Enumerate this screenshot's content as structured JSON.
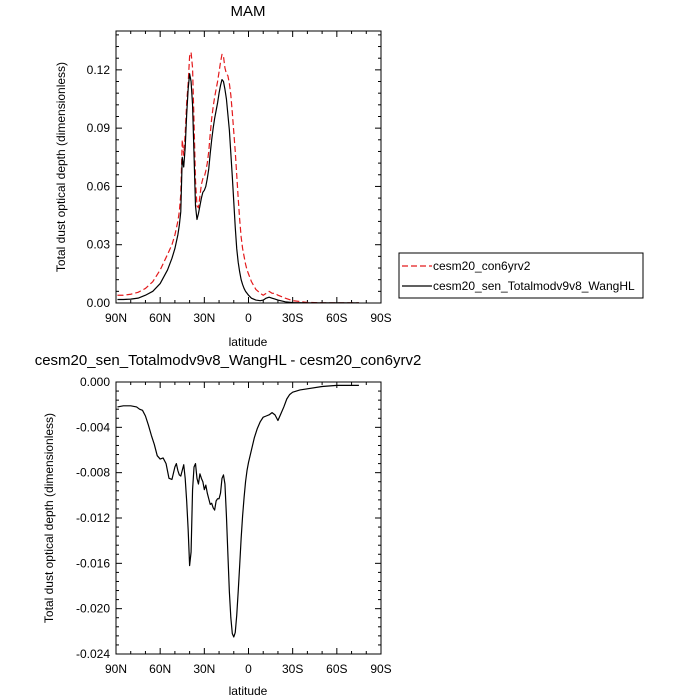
{
  "chart_data": [
    {
      "type": "line",
      "title": "MAM",
      "xlabel": "latitude",
      "ylabel": "Total dust optical depth (dimensionless)",
      "xlim": [
        90,
        -90
      ],
      "ylim": [
        0,
        0.14
      ],
      "x_ticks": [
        "90N",
        "60N",
        "30N",
        "0",
        "30S",
        "60S",
        "90S"
      ],
      "x_tick_values": [
        90,
        60,
        30,
        0,
        -30,
        -60,
        -90
      ],
      "y_ticks": [
        "0.00",
        "0.03",
        "0.06",
        "0.09",
        "0.12"
      ],
      "y_tick_values": [
        0,
        0.03,
        0.06,
        0.09,
        0.12
      ],
      "grid": false,
      "legend_position": "right",
      "series": [
        {
          "name": "cesm20_con6yrv2",
          "color": "#e31a1c",
          "dash": "dashed",
          "x": [
            89,
            85,
            80,
            75,
            70,
            65,
            60,
            55,
            52,
            50,
            48,
            47,
            46,
            45,
            44,
            43,
            42,
            41,
            40,
            39,
            38,
            37,
            36,
            35,
            34,
            33,
            32,
            31,
            30,
            29,
            28,
            27,
            26,
            25,
            24,
            23,
            22,
            21,
            20,
            19,
            18,
            17,
            16,
            15,
            14,
            13,
            12,
            11,
            10,
            9,
            8,
            7,
            6,
            5,
            4,
            3,
            2,
            1,
            0,
            -2,
            -5,
            -8,
            -10,
            -12,
            -14,
            -16,
            -18,
            -20,
            -25,
            -30,
            -40,
            -50,
            -60,
            -70,
            -75
          ],
          "y": [
            0.004,
            0.004,
            0.0045,
            0.0055,
            0.0075,
            0.011,
            0.017,
            0.025,
            0.03,
            0.035,
            0.042,
            0.047,
            0.056,
            0.084,
            0.076,
            0.087,
            0.103,
            0.113,
            0.127,
            0.129,
            0.121,
            0.093,
            0.063,
            0.05,
            0.049,
            0.055,
            0.061,
            0.064,
            0.065,
            0.068,
            0.072,
            0.078,
            0.087,
            0.095,
            0.101,
            0.106,
            0.11,
            0.114,
            0.119,
            0.124,
            0.128,
            0.127,
            0.121,
            0.118,
            0.117,
            0.113,
            0.107,
            0.098,
            0.088,
            0.078,
            0.066,
            0.054,
            0.043,
            0.034,
            0.028,
            0.024,
            0.02,
            0.017,
            0.015,
            0.011,
            0.007,
            0.005,
            0.004,
            0.005,
            0.006,
            0.005,
            0.005,
            0.004,
            0.0025,
            0.0012,
            0.0003,
            0.0001,
            0.0001,
            0.0001,
            0.0001
          ]
        },
        {
          "name": "cesm20_sen_Totalmodv9v8_WangHL",
          "color": "#000000",
          "dash": "solid",
          "x": [
            89,
            85,
            80,
            75,
            70,
            65,
            60,
            55,
            52,
            50,
            48,
            47,
            46,
            45,
            44,
            43,
            42,
            41,
            40,
            39,
            38,
            37,
            36,
            35,
            34,
            33,
            32,
            31,
            30,
            29,
            28,
            27,
            26,
            25,
            24,
            23,
            22,
            21,
            20,
            19,
            18,
            17,
            16,
            15,
            14,
            13,
            12,
            11,
            10,
            9,
            8,
            7,
            6,
            5,
            4,
            3,
            2,
            1,
            0,
            -2,
            -5,
            -8,
            -10,
            -12,
            -14,
            -16,
            -18,
            -20,
            -25,
            -30,
            -40,
            -50,
            -60,
            -70,
            -75
          ],
          "y": [
            0.0018,
            0.0018,
            0.002,
            0.0025,
            0.004,
            0.006,
            0.01,
            0.017,
            0.023,
            0.028,
            0.035,
            0.04,
            0.047,
            0.075,
            0.07,
            0.08,
            0.097,
            0.11,
            0.118,
            0.114,
            0.102,
            0.076,
            0.05,
            0.043,
            0.046,
            0.05,
            0.054,
            0.057,
            0.058,
            0.06,
            0.064,
            0.069,
            0.077,
            0.084,
            0.09,
            0.095,
            0.099,
            0.103,
            0.108,
            0.112,
            0.115,
            0.114,
            0.11,
            0.105,
            0.097,
            0.089,
            0.077,
            0.065,
            0.052,
            0.039,
            0.028,
            0.021,
            0.016,
            0.012,
            0.0095,
            0.0075,
            0.006,
            0.005,
            0.004,
            0.0025,
            0.0015,
            0.0012,
            0.0015,
            0.0025,
            0.003,
            0.0025,
            0.002,
            0.0015,
            0.0006,
            0.0002,
            0.0001,
            0.0001,
            0.0001,
            0.0001,
            0.0001
          ]
        }
      ]
    },
    {
      "type": "line",
      "title": "cesm20_sen_Totalmodv9v8_WangHL - cesm20_con6yrv2",
      "xlabel": "latitude",
      "ylabel": "Total dust optical depth (dimensionless)",
      "xlim": [
        90,
        -90
      ],
      "ylim": [
        -0.024,
        0
      ],
      "x_ticks": [
        "90N",
        "60N",
        "30N",
        "0",
        "30S",
        "60S",
        "90S"
      ],
      "x_tick_values": [
        90,
        60,
        30,
        0,
        -30,
        -60,
        -90
      ],
      "y_ticks": [
        "0.000",
        "-0.004",
        "-0.008",
        "-0.012",
        "-0.016",
        "-0.020",
        "-0.024"
      ],
      "y_tick_values": [
        0,
        -0.004,
        -0.008,
        -0.012,
        -0.016,
        -0.02,
        -0.024
      ],
      "grid": false,
      "series": [
        {
          "color": "#000000",
          "dash": "solid",
          "x": [
            89,
            85,
            80,
            76,
            74,
            72,
            70,
            68,
            66,
            64,
            62,
            60,
            58,
            56,
            54,
            52,
            50,
            49,
            48,
            47,
            46,
            45,
            44,
            43,
            42,
            41,
            40,
            39,
            38,
            37,
            36,
            35,
            34,
            33,
            32,
            31,
            30,
            29,
            28,
            27,
            26,
            25,
            24,
            23,
            22,
            21,
            20,
            19,
            18,
            17,
            16,
            15,
            14,
            13,
            12,
            11,
            10,
            9,
            8,
            7,
            6,
            5,
            4,
            3,
            2,
            1,
            0,
            -2,
            -4,
            -6,
            -8,
            -10,
            -12,
            -14,
            -16,
            -18,
            -20,
            -22,
            -24,
            -26,
            -28,
            -30,
            -35,
            -40,
            -50,
            -60,
            -70,
            -75
          ],
          "y": [
            -0.0022,
            -0.0021,
            -0.0021,
            -0.0022,
            -0.0024,
            -0.0025,
            -0.003,
            -0.0038,
            -0.0047,
            -0.0055,
            -0.0065,
            -0.0068,
            -0.0067,
            -0.0072,
            -0.0085,
            -0.0086,
            -0.0075,
            -0.0072,
            -0.0078,
            -0.0082,
            -0.0083,
            -0.0078,
            -0.0073,
            -0.0085,
            -0.0105,
            -0.013,
            -0.0162,
            -0.015,
            -0.0095,
            -0.0075,
            -0.0072,
            -0.0085,
            -0.009,
            -0.0081,
            -0.0085,
            -0.0088,
            -0.0095,
            -0.0091,
            -0.0098,
            -0.0103,
            -0.0108,
            -0.0107,
            -0.0111,
            -0.0113,
            -0.0105,
            -0.0103,
            -0.0103,
            -0.0098,
            -0.0085,
            -0.0082,
            -0.009,
            -0.0118,
            -0.0152,
            -0.0185,
            -0.0208,
            -0.0222,
            -0.0225,
            -0.0221,
            -0.0206,
            -0.0185,
            -0.0162,
            -0.0138,
            -0.0118,
            -0.0102,
            -0.0088,
            -0.0078,
            -0.0071,
            -0.006,
            -0.0049,
            -0.0041,
            -0.0035,
            -0.0031,
            -0.003,
            -0.0029,
            -0.0027,
            -0.0029,
            -0.0034,
            -0.0028,
            -0.0022,
            -0.0015,
            -0.0011,
            -0.0009,
            -0.0007,
            -0.0006,
            -0.0004,
            -0.0003,
            -0.0003,
            -0.0003
          ]
        }
      ]
    }
  ]
}
